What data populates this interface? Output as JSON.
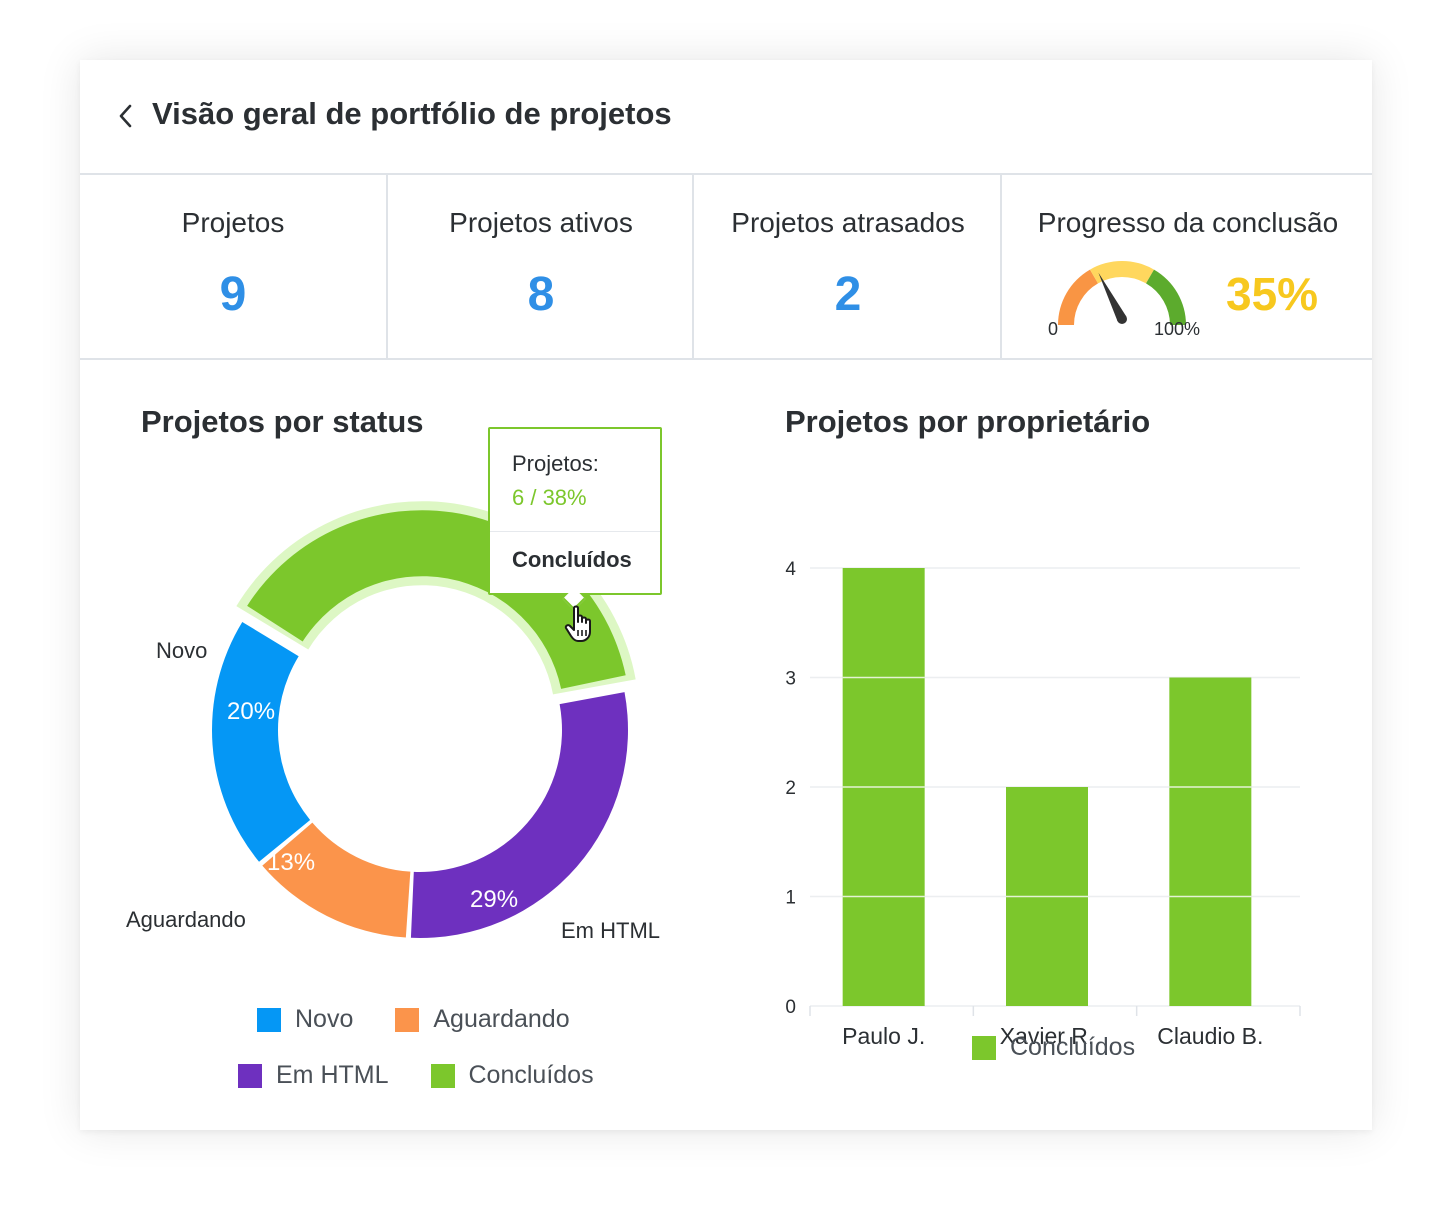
{
  "header": {
    "title": "Visão geral de portfólio de projetos"
  },
  "kpis": [
    {
      "label": "Projetos",
      "value": "9"
    },
    {
      "label": "Projetos ativos",
      "value": "8"
    },
    {
      "label": "Projetos atrasados",
      "value": "2"
    }
  ],
  "progress": {
    "label": "Progresso da conclusão",
    "value_text": "35%",
    "value": 35,
    "min_label": "0",
    "max_label": "100%",
    "colors": {
      "low": "#f99544",
      "mid": "#ffd75e",
      "high": "#5cab2d",
      "needle": "#333333",
      "text": "#f7c81e"
    }
  },
  "status_chart": {
    "title": "Projetos por status",
    "chart_data": {
      "type": "pie",
      "categories": [
        "Novo",
        "Aguardando",
        "Em HTML",
        "Concluídos"
      ],
      "percent_labels": [
        "20%",
        "13%",
        "29%",
        "38%"
      ],
      "values": [
        20,
        13,
        29,
        38
      ],
      "colors": [
        "#0597f5",
        "#fb944b",
        "#6e30bf",
        "#7cc72c"
      ],
      "highlighted": "Concluídos"
    },
    "slice_labels": {
      "novo": "Novo",
      "aguardando": "Aguardando",
      "em_html": "Em HTML"
    },
    "tooltip": {
      "label": "Projetos:",
      "value": "6 / 38%",
      "category": "Concluídos"
    },
    "legend": [
      {
        "label": "Novo",
        "color": "#0597f5"
      },
      {
        "label": "Aguardando",
        "color": "#fb944b"
      },
      {
        "label": "Em HTML",
        "color": "#6e30bf"
      },
      {
        "label": "Concluídos",
        "color": "#7cc72c"
      }
    ]
  },
  "owner_chart": {
    "title": "Projetos por proprietário",
    "chart_data": {
      "type": "bar",
      "categories": [
        "Paulo J.",
        "Xavier R.",
        "Claudio B."
      ],
      "series": [
        {
          "name": "Concluídos",
          "values": [
            4,
            2,
            3
          ],
          "color": "#7cc72c"
        }
      ],
      "ylim": [
        0,
        4
      ],
      "yticks": [
        0,
        1,
        2,
        3,
        4
      ],
      "grid": true,
      "legend": "bottom"
    },
    "legend": [
      {
        "label": "Concluídos",
        "color": "#7cc72c"
      }
    ]
  }
}
